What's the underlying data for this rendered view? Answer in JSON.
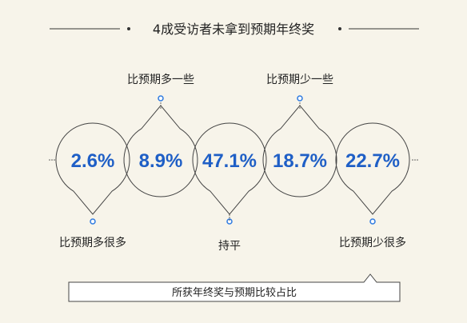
{
  "chart_data": {
    "type": "pie",
    "title": "4成受访者未拿到预期年终奖",
    "categories": [
      "比预期多很多",
      "比预期多一些",
      "持平",
      "比预期少一些",
      "比预期少很多"
    ],
    "values": [
      2.6,
      8.9,
      47.1,
      18.7,
      22.7
    ],
    "value_labels": [
      "2.6%",
      "8.9%",
      "47.1%",
      "18.7%",
      "22.7%"
    ],
    "unit": "%",
    "footer": "所获年终奖与预期比较占比"
  },
  "colors": {
    "background": "#f7f4ea",
    "value_text": "#1f5fc6",
    "marker": "#2f7be0",
    "outline": "#444444"
  }
}
